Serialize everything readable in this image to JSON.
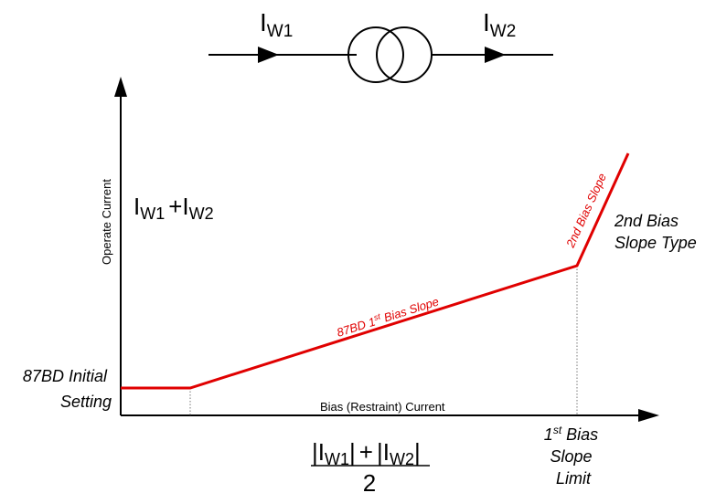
{
  "colors": {
    "curve": "#e00000",
    "axis": "#000000",
    "guide": "#777777"
  },
  "transformer": {
    "i_main": "I",
    "w1_sub": "W1",
    "w2_sub": "W2"
  },
  "y_axis": {
    "label": "Operate Current",
    "formula_main": "I",
    "formula_sub1": "W1",
    "formula_plus": "+I",
    "formula_sub2": "W2"
  },
  "x_axis": {
    "label": "Bias (Restraint) Current",
    "formula_bar": "|",
    "formula_i": "I",
    "formula_sub1": "W1",
    "formula_plus": "+",
    "formula_sub2": "W2",
    "denominator": "2"
  },
  "labels": {
    "initial_setting_line1": "87BD Initial",
    "initial_setting_line2": "Setting",
    "first_slope_prefix": "87BD 1",
    "first_slope_sup": "st",
    "first_slope_suffix": " Bias Slope",
    "second_slope": "2nd Bias Slope",
    "second_slope_type_line1": "2nd Bias",
    "second_slope_type_line2": "Slope Type",
    "limit_num": "1",
    "limit_sup": "st",
    "limit_line1_rest": " Bias",
    "limit_line2": "Slope",
    "limit_line3": "Limit"
  }
}
